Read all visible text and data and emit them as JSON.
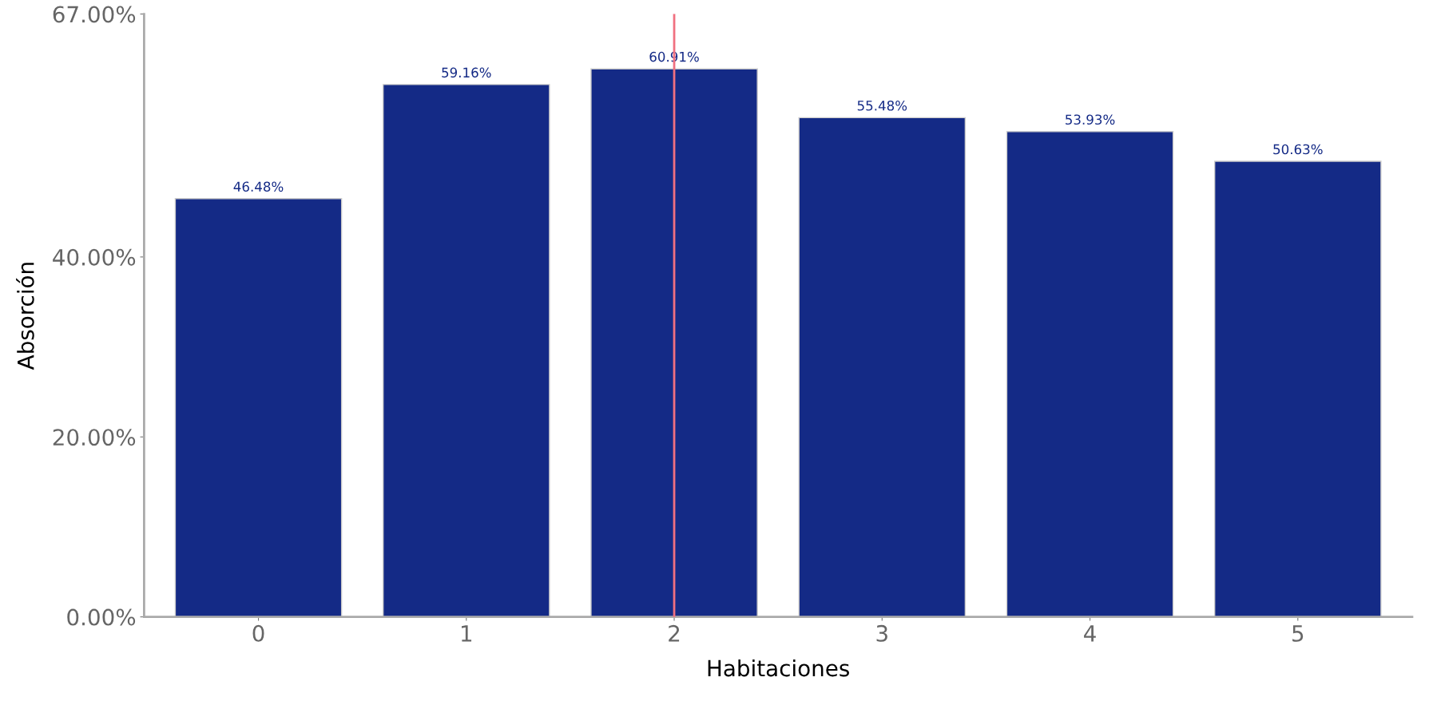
{
  "chart_data": {
    "type": "bar",
    "xlabel": "Habitaciones",
    "ylabel": "Absorción",
    "categories": [
      "0",
      "1",
      "2",
      "3",
      "4",
      "5"
    ],
    "values": [
      46.48,
      59.16,
      60.91,
      55.48,
      53.93,
      50.63
    ],
    "value_labels": [
      "46.48%",
      "59.16%",
      "60.91%",
      "55.48%",
      "53.93%",
      "50.63%"
    ],
    "color": "#142a86",
    "ylim": [
      0,
      67
    ],
    "yticks": [
      {
        "value": 0,
        "label": "0.00%"
      },
      {
        "value": 20,
        "label": "20.00%"
      },
      {
        "value": 40,
        "label": "40.00%"
      },
      {
        "value": 67,
        "label": "67.00%"
      }
    ],
    "ref_lines": [
      {
        "axis": "x",
        "value": "2",
        "color": "#f07080"
      }
    ],
    "grid": false,
    "legend": false
  }
}
